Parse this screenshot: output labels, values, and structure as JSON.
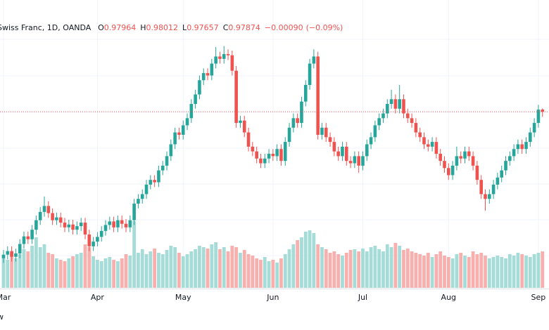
{
  "chart_data": {
    "type": "candlestick",
    "legend": {
      "title": "Swiss Franc, 1D, OANDA",
      "items": [
        {
          "label": "O",
          "value": 0.97964
        },
        {
          "label": "H",
          "value": 0.98012
        },
        {
          "label": "L",
          "value": 0.97657
        },
        {
          "label": "C",
          "value": 0.97874
        }
      ],
      "change": {
        "value": -0.0009,
        "label": "−0.00090"
      },
      "change_pct": {
        "value": -0.09,
        "label": "(−0.09%)"
      }
    },
    "footer": "w",
    "up_color": "#26a69a",
    "down_color": "#ef5350",
    "volume_up_color": "#a6dcd7",
    "volume_down_color": "#f7b0ae",
    "xlim": [
      -0.86,
      133.6
    ],
    "xticks": [
      {
        "value": 0,
        "label": "Mar"
      },
      {
        "value": 23,
        "label": "Apr"
      },
      {
        "value": 44,
        "label": "May"
      },
      {
        "value": 66,
        "label": "Jun"
      },
      {
        "value": 88,
        "label": "Jul"
      },
      {
        "value": 109,
        "label": "Aug"
      },
      {
        "value": 131,
        "label": "Sep"
      }
    ],
    "ylim": [
      0.9045,
      1.0258
    ],
    "open": [
      0.917,
      0.9185,
      0.92,
      0.9176,
      0.919,
      0.923,
      0.9262,
      0.925,
      0.929,
      0.933,
      0.9365,
      0.939,
      0.936,
      0.933,
      0.9342,
      0.932,
      0.93,
      0.9312,
      0.929,
      0.9305,
      0.932,
      0.927,
      0.922,
      0.924,
      0.926,
      0.9285,
      0.931,
      0.9325,
      0.93,
      0.933,
      0.9315,
      0.93,
      0.933,
      0.94,
      0.942,
      0.944,
      0.948,
      0.95,
      0.949,
      0.954,
      0.956,
      0.96,
      0.965,
      0.97,
      0.969,
      0.973,
      0.976,
      0.982,
      0.986,
      0.992,
      0.995,
      0.994,
      0.999,
      1.002,
      1.001,
      1.003,
      1.0025,
      0.996,
      0.974,
      0.975,
      0.97,
      0.964,
      0.962,
      0.959,
      0.957,
      0.959,
      0.961,
      0.96,
      0.963,
      0.958,
      0.966,
      0.972,
      0.976,
      0.974,
      0.983,
      0.99,
      0.999,
      1.002,
      0.969,
      0.972,
      0.968,
      0.966,
      0.962,
      0.96,
      0.964,
      0.958,
      0.957,
      0.96,
      0.956,
      0.96,
      0.965,
      0.968,
      0.973,
      0.976,
      0.978,
      0.982,
      0.984,
      0.98,
      0.984,
      0.978,
      0.976,
      0.974,
      0.97,
      0.968,
      0.965,
      0.964,
      0.966,
      0.961,
      0.958,
      0.955,
      0.952,
      0.956,
      0.96,
      0.959,
      0.962,
      0.96,
      0.956,
      0.95,
      0.944,
      0.942,
      0.944,
      0.948,
      0.951,
      0.954,
      0.958,
      0.96,
      0.963,
      0.965,
      0.963,
      0.966,
      0.97,
      0.974,
      0.97964
    ],
    "high": [
      0.9205,
      0.922,
      0.922,
      0.921,
      0.925,
      0.9282,
      0.9282,
      0.931,
      0.935,
      0.9385,
      0.943,
      0.941,
      0.938,
      0.9362,
      0.9362,
      0.934,
      0.9332,
      0.9332,
      0.9325,
      0.934,
      0.934,
      0.929,
      0.926,
      0.928,
      0.9305,
      0.933,
      0.9345,
      0.9345,
      0.935,
      0.935,
      0.9335,
      0.935,
      0.942,
      0.944,
      0.946,
      0.95,
      0.952,
      0.952,
      0.956,
      0.958,
      0.962,
      0.967,
      0.972,
      0.972,
      0.975,
      0.978,
      0.984,
      0.988,
      0.994,
      0.997,
      0.997,
      1.001,
      1.006,
      1.004,
      1.0064,
      1.005,
      1.0045,
      0.998,
      0.977,
      0.977,
      0.972,
      0.966,
      0.964,
      0.961,
      0.961,
      0.963,
      0.963,
      0.965,
      0.965,
      0.968,
      0.974,
      0.978,
      0.978,
      0.985,
      0.992,
      1.001,
      1.005,
      1.004,
      0.974,
      0.974,
      0.97,
      0.968,
      0.964,
      0.966,
      0.966,
      0.96,
      0.962,
      0.962,
      0.962,
      0.967,
      0.97,
      0.975,
      0.978,
      0.98,
      0.984,
      0.988,
      0.986,
      0.99,
      0.986,
      0.98,
      0.978,
      0.976,
      0.972,
      0.97,
      0.967,
      0.968,
      0.968,
      0.963,
      0.96,
      0.957,
      0.958,
      0.964,
      0.962,
      0.964,
      0.964,
      0.962,
      0.958,
      0.952,
      0.946,
      0.946,
      0.95,
      0.953,
      0.956,
      0.96,
      0.962,
      0.965,
      0.967,
      0.967,
      0.968,
      0.972,
      0.976,
      0.9816,
      0.98012
    ],
    "low": [
      0.915,
      0.9165,
      0.9156,
      0.9156,
      0.917,
      0.921,
      0.923,
      0.923,
      0.927,
      0.931,
      0.9345,
      0.934,
      0.931,
      0.931,
      0.93,
      0.928,
      0.928,
      0.927,
      0.927,
      0.9285,
      0.925,
      0.92,
      0.92,
      0.922,
      0.924,
      0.9265,
      0.929,
      0.928,
      0.928,
      0.9295,
      0.928,
      0.928,
      0.931,
      0.938,
      0.94,
      0.942,
      0.946,
      0.947,
      0.947,
      0.952,
      0.954,
      0.958,
      0.963,
      0.967,
      0.967,
      0.971,
      0.974,
      0.98,
      0.984,
      0.99,
      0.992,
      0.992,
      0.997,
      0.999,
      0.999,
      1.0005,
      0.994,
      0.972,
      0.972,
      0.968,
      0.962,
      0.96,
      0.957,
      0.955,
      0.955,
      0.957,
      0.958,
      0.958,
      0.956,
      0.956,
      0.964,
      0.97,
      0.972,
      0.972,
      0.981,
      0.988,
      0.997,
      0.967,
      0.967,
      0.966,
      0.964,
      0.96,
      0.958,
      0.958,
      0.956,
      0.955,
      0.955,
      0.953,
      0.954,
      0.958,
      0.963,
      0.966,
      0.971,
      0.974,
      0.976,
      0.98,
      0.978,
      0.978,
      0.976,
      0.974,
      0.972,
      0.968,
      0.966,
      0.963,
      0.962,
      0.962,
      0.959,
      0.956,
      0.953,
      0.95,
      0.95,
      0.954,
      0.957,
      0.957,
      0.958,
      0.954,
      0.948,
      0.942,
      0.937,
      0.94,
      0.942,
      0.946,
      0.949,
      0.952,
      0.956,
      0.958,
      0.961,
      0.961,
      0.961,
      0.964,
      0.968,
      0.972,
      0.97657
    ],
    "close": [
      0.9185,
      0.92,
      0.9176,
      0.919,
      0.923,
      0.9262,
      0.925,
      0.929,
      0.933,
      0.9365,
      0.939,
      0.936,
      0.933,
      0.9342,
      0.932,
      0.93,
      0.9312,
      0.929,
      0.9305,
      0.932,
      0.927,
      0.922,
      0.924,
      0.926,
      0.9285,
      0.931,
      0.9325,
      0.93,
      0.933,
      0.9315,
      0.93,
      0.933,
      0.94,
      0.942,
      0.944,
      0.948,
      0.95,
      0.949,
      0.954,
      0.956,
      0.96,
      0.965,
      0.97,
      0.969,
      0.973,
      0.976,
      0.982,
      0.986,
      0.992,
      0.995,
      0.994,
      0.999,
      1.002,
      1.001,
      1.003,
      1.0025,
      0.996,
      0.974,
      0.975,
      0.97,
      0.964,
      0.962,
      0.959,
      0.957,
      0.959,
      0.961,
      0.96,
      0.963,
      0.958,
      0.966,
      0.972,
      0.976,
      0.974,
      0.983,
      0.99,
      0.999,
      1.002,
      0.969,
      0.972,
      0.968,
      0.966,
      0.962,
      0.96,
      0.964,
      0.958,
      0.957,
      0.96,
      0.956,
      0.96,
      0.965,
      0.968,
      0.973,
      0.976,
      0.978,
      0.982,
      0.984,
      0.98,
      0.984,
      0.978,
      0.976,
      0.974,
      0.97,
      0.968,
      0.965,
      0.964,
      0.966,
      0.961,
      0.958,
      0.955,
      0.952,
      0.956,
      0.96,
      0.959,
      0.962,
      0.96,
      0.956,
      0.95,
      0.944,
      0.942,
      0.944,
      0.948,
      0.951,
      0.954,
      0.958,
      0.96,
      0.963,
      0.965,
      0.963,
      0.966,
      0.97,
      0.974,
      0.9796,
      0.97874
    ],
    "volume": [
      45,
      40,
      50,
      42,
      48,
      55,
      52,
      60,
      72,
      58,
      62,
      50,
      48,
      42,
      40,
      38,
      42,
      45,
      48,
      50,
      62,
      58,
      45,
      40,
      38,
      42,
      44,
      40,
      38,
      42,
      48,
      46,
      95,
      50,
      55,
      48,
      52,
      56,
      50,
      48,
      54,
      60,
      58,
      50,
      45,
      48,
      52,
      55,
      60,
      58,
      56,
      62,
      65,
      55,
      58,
      52,
      60,
      58,
      50,
      54,
      48,
      46,
      42,
      40,
      44,
      38,
      40,
      36,
      42,
      48,
      55,
      62,
      68,
      72,
      80,
      82,
      78,
      62,
      58,
      55,
      50,
      52,
      48,
      46,
      50,
      54,
      55,
      52,
      56,
      52,
      58,
      60,
      55,
      52,
      62,
      58,
      64,
      60,
      54,
      56,
      52,
      50,
      48,
      46,
      50,
      44,
      48,
      52,
      46,
      44,
      42,
      48,
      50,
      46,
      44,
      52,
      48,
      50,
      46,
      42,
      44,
      46,
      44,
      42,
      48,
      46,
      50,
      48,
      46,
      44,
      48,
      50,
      52
    ]
  }
}
